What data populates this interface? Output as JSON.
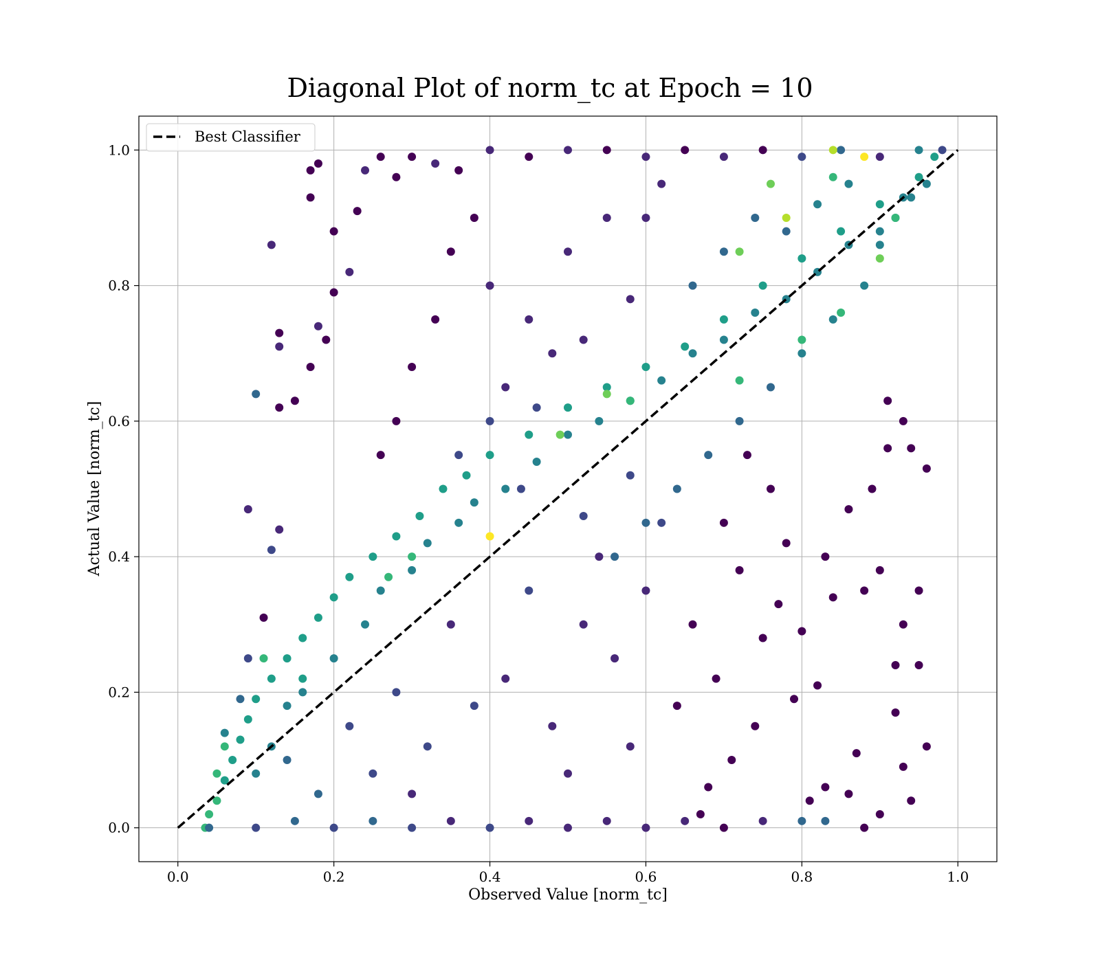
{
  "chart_data": {
    "type": "scatter",
    "title": "Diagonal Plot of norm_tc at Epoch = 10",
    "xlabel": "Observed Value [norm_tc]",
    "ylabel": "Actual Value [norm_tc]",
    "xlim": [
      -0.05,
      1.05
    ],
    "ylim": [
      -0.05,
      1.05
    ],
    "xticks": [
      0.0,
      0.2,
      0.4,
      0.6,
      0.8,
      1.0
    ],
    "yticks": [
      0.0,
      0.2,
      0.4,
      0.6,
      0.8,
      1.0
    ],
    "xtick_labels": [
      "0.0",
      "0.2",
      "0.4",
      "0.6",
      "0.8",
      "1.0"
    ],
    "ytick_labels": [
      "0.0",
      "0.2",
      "0.4",
      "0.6",
      "0.8",
      "1.0"
    ],
    "grid": true,
    "colormap": "viridis",
    "colors": {
      "viridis": [
        "#440154",
        "#482878",
        "#3e4989",
        "#31688e",
        "#26828e",
        "#1f9e89",
        "#35b779",
        "#6ece58",
        "#b5de2b",
        "#fde725"
      ],
      "reference_line": "#000000",
      "grid": "#b0b0b0"
    },
    "legend": {
      "placement": "upper-left",
      "entries": [
        {
          "label": "Best Classifier",
          "style": "dashed",
          "color": "#000000"
        }
      ]
    },
    "reference_line": {
      "name": "Best Classifier",
      "x": [
        0.0,
        1.0
      ],
      "y": [
        0.0,
        1.0
      ],
      "style": "dashed"
    },
    "series": [
      {
        "points": [
          [
            0.035,
            0.0
          ],
          [
            0.04,
            0.02
          ],
          [
            0.05,
            0.04
          ],
          [
            0.06,
            0.07
          ],
          [
            0.07,
            0.1
          ],
          [
            0.08,
            0.13
          ],
          [
            0.09,
            0.16
          ],
          [
            0.1,
            0.19
          ],
          [
            0.12,
            0.22
          ],
          [
            0.14,
            0.25
          ],
          [
            0.16,
            0.28
          ],
          [
            0.18,
            0.31
          ],
          [
            0.2,
            0.34
          ],
          [
            0.22,
            0.37
          ],
          [
            0.25,
            0.4
          ],
          [
            0.28,
            0.43
          ],
          [
            0.31,
            0.46
          ],
          [
            0.34,
            0.5
          ],
          [
            0.37,
            0.52
          ],
          [
            0.4,
            0.55
          ],
          [
            0.45,
            0.58
          ],
          [
            0.5,
            0.62
          ],
          [
            0.55,
            0.65
          ],
          [
            0.6,
            0.68
          ],
          [
            0.65,
            0.71
          ],
          [
            0.7,
            0.75
          ],
          [
            0.75,
            0.8
          ],
          [
            0.8,
            0.84
          ],
          [
            0.85,
            0.88
          ],
          [
            0.9,
            0.92
          ],
          [
            0.95,
            0.96
          ],
          [
            0.97,
            0.99
          ],
          [
            0.12,
            0.86
          ],
          [
            0.17,
            0.97
          ],
          [
            0.18,
            0.98
          ],
          [
            0.17,
            0.93
          ],
          [
            0.2,
            0.88
          ],
          [
            0.1,
            0.64
          ],
          [
            0.13,
            0.71
          ],
          [
            0.13,
            0.73
          ],
          [
            0.13,
            0.62
          ],
          [
            0.09,
            0.47
          ],
          [
            0.12,
            0.41
          ],
          [
            0.13,
            0.44
          ],
          [
            0.09,
            0.25
          ],
          [
            0.11,
            0.31
          ],
          [
            0.08,
            0.19
          ],
          [
            0.06,
            0.14
          ],
          [
            0.15,
            0.63
          ],
          [
            0.17,
            0.68
          ],
          [
            0.18,
            0.74
          ],
          [
            0.19,
            0.72
          ],
          [
            0.2,
            0.79
          ],
          [
            0.22,
            0.82
          ],
          [
            0.23,
            0.91
          ],
          [
            0.24,
            0.97
          ],
          [
            0.26,
            0.99
          ],
          [
            0.28,
            0.96
          ],
          [
            0.3,
            0.99
          ],
          [
            0.33,
            0.98
          ],
          [
            0.36,
            0.97
          ],
          [
            0.4,
            1.0
          ],
          [
            0.45,
            0.99
          ],
          [
            0.5,
            1.0
          ],
          [
            0.55,
            1.0
          ],
          [
            0.6,
            0.99
          ],
          [
            0.65,
            1.0
          ],
          [
            0.7,
            0.99
          ],
          [
            0.75,
            1.0
          ],
          [
            0.8,
            0.99
          ],
          [
            0.85,
            1.0
          ],
          [
            0.9,
            0.99
          ],
          [
            0.95,
            1.0
          ],
          [
            0.98,
            1.0
          ],
          [
            0.04,
            0.0
          ],
          [
            0.1,
            0.0
          ],
          [
            0.15,
            0.01
          ],
          [
            0.2,
            0.0
          ],
          [
            0.25,
            0.01
          ],
          [
            0.3,
            0.0
          ],
          [
            0.35,
            0.01
          ],
          [
            0.4,
            0.0
          ],
          [
            0.45,
            0.01
          ],
          [
            0.5,
            0.0
          ],
          [
            0.55,
            0.01
          ],
          [
            0.6,
            0.0
          ],
          [
            0.65,
            0.01
          ],
          [
            0.7,
            0.0
          ],
          [
            0.75,
            0.01
          ],
          [
            0.8,
            0.01
          ],
          [
            0.83,
            0.01
          ],
          [
            0.88,
            0.0
          ],
          [
            0.9,
            0.02
          ],
          [
            0.95,
            0.35
          ],
          [
            0.96,
            0.12
          ],
          [
            0.94,
            0.04
          ],
          [
            0.92,
            0.24
          ],
          [
            0.93,
            0.3
          ],
          [
            0.9,
            0.38
          ],
          [
            0.88,
            0.35
          ],
          [
            0.84,
            0.34
          ],
          [
            0.83,
            0.4
          ],
          [
            0.86,
            0.47
          ],
          [
            0.91,
            0.56
          ],
          [
            0.94,
            0.56
          ],
          [
            0.96,
            0.53
          ],
          [
            0.93,
            0.6
          ],
          [
            0.91,
            0.63
          ],
          [
            0.89,
            0.5
          ],
          [
            0.95,
            0.24
          ],
          [
            0.93,
            0.09
          ],
          [
            0.92,
            0.17
          ],
          [
            0.87,
            0.11
          ],
          [
            0.86,
            0.05
          ],
          [
            0.82,
            0.21
          ],
          [
            0.83,
            0.06
          ],
          [
            0.81,
            0.04
          ],
          [
            0.8,
            0.29
          ],
          [
            0.79,
            0.19
          ],
          [
            0.7,
            0.45
          ],
          [
            0.72,
            0.38
          ],
          [
            0.75,
            0.28
          ],
          [
            0.77,
            0.33
          ],
          [
            0.78,
            0.42
          ],
          [
            0.76,
            0.5
          ],
          [
            0.73,
            0.55
          ],
          [
            0.74,
            0.15
          ],
          [
            0.71,
            0.1
          ],
          [
            0.69,
            0.22
          ],
          [
            0.68,
            0.06
          ],
          [
            0.66,
            0.3
          ],
          [
            0.64,
            0.18
          ],
          [
            0.67,
            0.02
          ],
          [
            0.35,
            0.3
          ],
          [
            0.42,
            0.22
          ],
          [
            0.48,
            0.15
          ],
          [
            0.52,
            0.3
          ],
          [
            0.56,
            0.25
          ],
          [
            0.58,
            0.12
          ],
          [
            0.45,
            0.35
          ],
          [
            0.38,
            0.18
          ],
          [
            0.32,
            0.12
          ],
          [
            0.28,
            0.2
          ],
          [
            0.25,
            0.08
          ],
          [
            0.22,
            0.15
          ],
          [
            0.18,
            0.05
          ],
          [
            0.14,
            0.1
          ],
          [
            0.3,
            0.05
          ],
          [
            0.5,
            0.08
          ],
          [
            0.54,
            0.4
          ],
          [
            0.6,
            0.35
          ],
          [
            0.62,
            0.45
          ],
          [
            0.58,
            0.52
          ],
          [
            0.4,
            0.8
          ],
          [
            0.45,
            0.75
          ],
          [
            0.5,
            0.85
          ],
          [
            0.55,
            0.9
          ],
          [
            0.48,
            0.7
          ],
          [
            0.42,
            0.65
          ],
          [
            0.38,
            0.9
          ],
          [
            0.35,
            0.85
          ],
          [
            0.33,
            0.75
          ],
          [
            0.3,
            0.68
          ],
          [
            0.28,
            0.6
          ],
          [
            0.26,
            0.55
          ],
          [
            0.6,
            0.9
          ],
          [
            0.62,
            0.95
          ],
          [
            0.58,
            0.78
          ],
          [
            0.52,
            0.72
          ],
          [
            0.46,
            0.62
          ],
          [
            0.4,
            0.6
          ],
          [
            0.36,
            0.55
          ],
          [
            0.44,
            0.5
          ],
          [
            0.66,
            0.8
          ],
          [
            0.7,
            0.85
          ],
          [
            0.74,
            0.9
          ],
          [
            0.78,
            0.88
          ],
          [
            0.82,
            0.92
          ],
          [
            0.86,
            0.95
          ],
          [
            0.8,
            0.7
          ],
          [
            0.84,
            0.75
          ],
          [
            0.88,
            0.8
          ],
          [
            0.9,
            0.86
          ],
          [
            0.92,
            0.9
          ],
          [
            0.94,
            0.93
          ],
          [
            0.96,
            0.95
          ],
          [
            0.76,
            0.65
          ],
          [
            0.72,
            0.6
          ],
          [
            0.68,
            0.55
          ],
          [
            0.64,
            0.5
          ],
          [
            0.6,
            0.45
          ],
          [
            0.56,
            0.4
          ],
          [
            0.52,
            0.46
          ],
          [
            0.1,
            0.08
          ],
          [
            0.12,
            0.12
          ],
          [
            0.14,
            0.18
          ],
          [
            0.16,
            0.2
          ],
          [
            0.2,
            0.25
          ],
          [
            0.24,
            0.3
          ],
          [
            0.26,
            0.35
          ],
          [
            0.3,
            0.38
          ],
          [
            0.32,
            0.42
          ],
          [
            0.36,
            0.45
          ],
          [
            0.38,
            0.48
          ],
          [
            0.42,
            0.5
          ],
          [
            0.46,
            0.54
          ],
          [
            0.5,
            0.58
          ],
          [
            0.54,
            0.6
          ],
          [
            0.58,
            0.63
          ],
          [
            0.62,
            0.66
          ],
          [
            0.66,
            0.7
          ],
          [
            0.7,
            0.72
          ],
          [
            0.74,
            0.76
          ],
          [
            0.78,
            0.78
          ],
          [
            0.82,
            0.82
          ],
          [
            0.86,
            0.86
          ],
          [
            0.9,
            0.88
          ],
          [
            0.93,
            0.93
          ],
          [
            0.84,
            1.0
          ],
          [
            0.88,
            0.99
          ],
          [
            0.76,
            0.95
          ],
          [
            0.78,
            0.9
          ],
          [
            0.84,
            0.96
          ],
          [
            0.72,
            0.85
          ],
          [
            0.55,
            0.64
          ],
          [
            0.49,
            0.58
          ],
          [
            0.4,
            0.43
          ],
          [
            0.27,
            0.37
          ],
          [
            0.11,
            0.25
          ],
          [
            0.06,
            0.12
          ],
          [
            0.05,
            0.08
          ],
          [
            0.16,
            0.22
          ],
          [
            0.3,
            0.4
          ],
          [
            0.58,
            0.63
          ],
          [
            0.72,
            0.66
          ],
          [
            0.8,
            0.72
          ],
          [
            0.85,
            0.76
          ],
          [
            0.9,
            0.84
          ],
          [
            0.92,
            0.9
          ]
        ],
        "color_levels": [
          6,
          6,
          6,
          5,
          5,
          5,
          5,
          5,
          5,
          5,
          5,
          5,
          5,
          5,
          5,
          5,
          5,
          5,
          5,
          5,
          5,
          5,
          5,
          5,
          5,
          5,
          5,
          5,
          5,
          5,
          5,
          5,
          1,
          0,
          0,
          0,
          0,
          3,
          1,
          0,
          0,
          1,
          2,
          1,
          2,
          0,
          3,
          4,
          0,
          0,
          1,
          0,
          0,
          1,
          0,
          1,
          0,
          0,
          0,
          1,
          0,
          1,
          0,
          1,
          0,
          1,
          0,
          1,
          0,
          2,
          3,
          1,
          4,
          2,
          3,
          2,
          3,
          2,
          3,
          2,
          1,
          2,
          1,
          1,
          1,
          1,
          1,
          0,
          1,
          3,
          3,
          0,
          0,
          0,
          0,
          0,
          0,
          0,
          0,
          0,
          0,
          0,
          0,
          0,
          0,
          0,
          0,
          0,
          0,
          0,
          0,
          0,
          0,
          0,
          0,
          0,
          0,
          0,
          0,
          0,
          0,
          0,
          0,
          0,
          0,
          0,
          0,
          0,
          0,
          0,
          0,
          0,
          0,
          1,
          1,
          1,
          1,
          1,
          1,
          2,
          2,
          2,
          2,
          2,
          2,
          3,
          3,
          1,
          1,
          1,
          1,
          2,
          2,
          1,
          1,
          1,
          1,
          1,
          1,
          0,
          0,
          0,
          0,
          0,
          0,
          1,
          1,
          1,
          1,
          2,
          2,
          2,
          2,
          3,
          3,
          3,
          3,
          4,
          4,
          4,
          4,
          4,
          4,
          4,
          4,
          4,
          3,
          3,
          3,
          3,
          3,
          3,
          2,
          4,
          4,
          4,
          4,
          4,
          4,
          4,
          4,
          4,
          4,
          4,
          4,
          4,
          4,
          4,
          4,
          4,
          4,
          4,
          4,
          4,
          4,
          4,
          4,
          4,
          8,
          9,
          7,
          8,
          6,
          7,
          7,
          7,
          9,
          6,
          6,
          6,
          6,
          5,
          6,
          6,
          6,
          6,
          6,
          7,
          6
        ]
      }
    ]
  }
}
